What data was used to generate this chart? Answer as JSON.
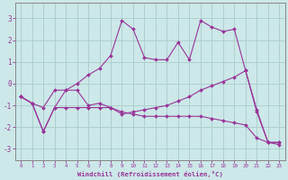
{
  "xlabel": "Windchill (Refroidissement éolien,°C)",
  "background_color": "#cce8e8",
  "grid_color": "#aacccc",
  "line_color": "#993399",
  "xlim": [
    -0.5,
    23.5
  ],
  "ylim": [
    -3.5,
    3.7
  ],
  "xticks": [
    0,
    1,
    2,
    3,
    4,
    5,
    6,
    7,
    8,
    9,
    10,
    11,
    12,
    13,
    14,
    15,
    16,
    17,
    18,
    19,
    20,
    21,
    22,
    23
  ],
  "yticks": [
    -3,
    -2,
    -1,
    0,
    1,
    2,
    3
  ],
  "series1_x": [
    0,
    1,
    2,
    3,
    4,
    5,
    6,
    7,
    8,
    9,
    10,
    11,
    12,
    13,
    14,
    15,
    16,
    17,
    18,
    19,
    20,
    21,
    22,
    23
  ],
  "series1_y": [
    -0.6,
    -0.9,
    -2.2,
    -1.1,
    -1.1,
    -1.1,
    -1.1,
    -1.1,
    -1.1,
    -1.3,
    -1.4,
    -1.5,
    -1.5,
    -1.5,
    -1.5,
    -1.5,
    -1.5,
    -1.6,
    -1.7,
    -1.8,
    -1.9,
    -2.5,
    -2.7,
    -2.8
  ],
  "series2_x": [
    0,
    1,
    2,
    3,
    4,
    5,
    6,
    7,
    8,
    9,
    10,
    11,
    12,
    13,
    14,
    15,
    16,
    17,
    18,
    19,
    20,
    21,
    22,
    23
  ],
  "series2_y": [
    -0.6,
    -0.9,
    -2.2,
    -1.1,
    -0.3,
    -0.3,
    -1.0,
    -0.9,
    -1.1,
    -1.4,
    -1.3,
    -1.2,
    -1.1,
    -1.0,
    -0.8,
    -0.6,
    -0.3,
    -0.1,
    0.1,
    0.3,
    0.6,
    -1.3,
    -2.7,
    -2.7
  ],
  "series3_x": [
    0,
    1,
    2,
    3,
    4,
    5,
    6,
    7,
    8,
    9,
    10,
    11,
    12,
    13,
    14,
    15,
    16,
    17,
    18,
    19,
    20,
    21,
    22,
    23
  ],
  "series3_y": [
    -0.6,
    -0.9,
    -1.1,
    -0.3,
    -0.3,
    0.0,
    0.4,
    0.7,
    1.3,
    2.9,
    2.5,
    1.2,
    1.1,
    1.1,
    1.9,
    1.1,
    2.9,
    2.6,
    2.4,
    2.5,
    0.6,
    -1.2,
    -2.7,
    -2.7
  ]
}
